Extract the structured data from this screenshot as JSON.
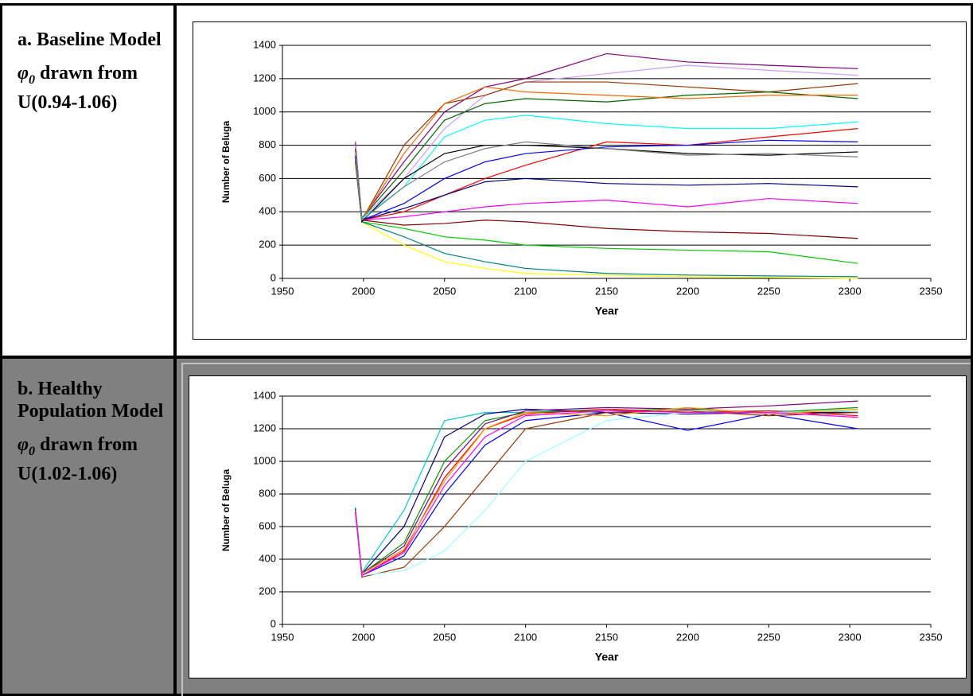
{
  "panels": [
    {
      "title": "a. Baseline Model",
      "symbol": "φ",
      "subscript": "0",
      "text": "drawn from U(0.94-1.06)"
    },
    {
      "title": "b. Healthy Population Model",
      "symbol": "φ",
      "subscript": "0",
      "text": "drawn from U(1.02-1.06)"
    }
  ],
  "chart_data": [
    {
      "type": "line",
      "y_label": "Number of Beluga",
      "x_label": "Year",
      "x": [
        1995,
        1999,
        2025,
        2050,
        2075,
        2100,
        2150,
        2200,
        2250,
        2305
      ],
      "xlim": [
        1950,
        2350
      ],
      "xticks": [
        1950,
        2000,
        2050,
        2100,
        2150,
        2200,
        2250,
        2300,
        2350
      ],
      "ylim": [
        0,
        1400
      ],
      "yticks": [
        0,
        200,
        400,
        600,
        800,
        1000,
        1200,
        1400
      ],
      "grid": true,
      "series": [
        {
          "color": "#800080",
          "values": [
            820,
            360,
            700,
            1000,
            1150,
            1200,
            1350,
            1300,
            1280,
            1260
          ]
        },
        {
          "color": "#cc99ff",
          "values": [
            800,
            360,
            600,
            900,
            1100,
            1180,
            1230,
            1280,
            1250,
            1220
          ]
        },
        {
          "color": "#993300",
          "values": [
            780,
            350,
            800,
            1050,
            1100,
            1180,
            1180,
            1150,
            1120,
            1170
          ]
        },
        {
          "color": "#006600",
          "values": [
            770,
            360,
            650,
            950,
            1050,
            1080,
            1060,
            1100,
            1120,
            1080
          ]
        },
        {
          "color": "#ff6600",
          "values": [
            760,
            350,
            750,
            1050,
            1150,
            1120,
            1100,
            1080,
            1100,
            1100
          ]
        },
        {
          "color": "#00ffff",
          "values": [
            750,
            360,
            550,
            850,
            950,
            980,
            930,
            900,
            900,
            940
          ]
        },
        {
          "color": "#ff0000",
          "values": [
            740,
            350,
            400,
            500,
            600,
            680,
            820,
            800,
            850,
            900
          ]
        },
        {
          "color": "#0000ff",
          "values": [
            730,
            350,
            450,
            600,
            700,
            750,
            790,
            800,
            830,
            820
          ]
        },
        {
          "color": "#000080",
          "values": [
            720,
            350,
            420,
            500,
            580,
            600,
            570,
            560,
            570,
            550
          ]
        },
        {
          "color": "#ff00ff",
          "values": [
            710,
            350,
            370,
            400,
            430,
            450,
            470,
            430,
            480,
            450
          ]
        },
        {
          "color": "#800000",
          "values": [
            700,
            350,
            320,
            330,
            350,
            340,
            300,
            280,
            270,
            240
          ]
        },
        {
          "color": "#00cc00",
          "values": [
            700,
            340,
            300,
            250,
            230,
            200,
            180,
            170,
            160,
            90
          ]
        },
        {
          "color": "#ffff00",
          "values": [
            690,
            340,
            200,
            100,
            60,
            30,
            20,
            10,
            5,
            0
          ]
        },
        {
          "color": "#008080",
          "values": [
            700,
            340,
            250,
            150,
            100,
            60,
            30,
            20,
            15,
            10
          ]
        },
        {
          "color": "#000000",
          "values": [
            710,
            340,
            600,
            750,
            800,
            800,
            780,
            750,
            740,
            760
          ]
        },
        {
          "color": "#808080",
          "values": [
            720,
            350,
            550,
            700,
            780,
            820,
            780,
            740,
            750,
            730
          ]
        }
      ]
    },
    {
      "type": "line",
      "y_label": "Number of Beluga",
      "x_label": "Year",
      "x": [
        1995,
        1999,
        2025,
        2050,
        2075,
        2100,
        2150,
        2200,
        2250,
        2305
      ],
      "xlim": [
        1950,
        2350
      ],
      "xticks": [
        1950,
        2000,
        2050,
        2100,
        2150,
        2200,
        2250,
        2300,
        2350
      ],
      "ylim": [
        0,
        1400
      ],
      "yticks": [
        0,
        200,
        400,
        600,
        800,
        1000,
        1200,
        1400
      ],
      "grid": true,
      "series": [
        {
          "color": "#00cccc",
          "values": [
            720,
            320,
            700,
            1250,
            1300,
            1300,
            1320,
            1300,
            1310,
            1300
          ]
        },
        {
          "color": "#000080",
          "values": [
            710,
            310,
            600,
            1150,
            1290,
            1320,
            1300,
            1290,
            1300,
            1300
          ]
        },
        {
          "color": "#009900",
          "values": [
            700,
            310,
            500,
            1000,
            1250,
            1300,
            1310,
            1320,
            1300,
            1330
          ]
        },
        {
          "color": "#ff0000",
          "values": [
            700,
            300,
            450,
            900,
            1200,
            1290,
            1320,
            1300,
            1310,
            1280
          ]
        },
        {
          "color": "#0000ff",
          "values": [
            690,
            300,
            420,
            800,
            1100,
            1250,
            1300,
            1190,
            1290,
            1200
          ]
        },
        {
          "color": "#993300",
          "values": [
            690,
            290,
            350,
            600,
            900,
            1200,
            1300,
            1310,
            1280,
            1300
          ]
        },
        {
          "color": "#99ffff",
          "values": [
            680,
            300,
            330,
            450,
            700,
            1000,
            1250,
            1300,
            1300,
            1310
          ]
        },
        {
          "color": "#800080",
          "values": [
            700,
            310,
            480,
            950,
            1230,
            1310,
            1330,
            1320,
            1340,
            1370
          ]
        },
        {
          "color": "#ff9900",
          "values": [
            700,
            310,
            460,
            880,
            1200,
            1300,
            1280,
            1330,
            1290,
            1320
          ]
        },
        {
          "color": "#ff00ff",
          "values": [
            690,
            300,
            440,
            850,
            1150,
            1280,
            1310,
            1300,
            1300,
            1270
          ]
        }
      ]
    }
  ]
}
